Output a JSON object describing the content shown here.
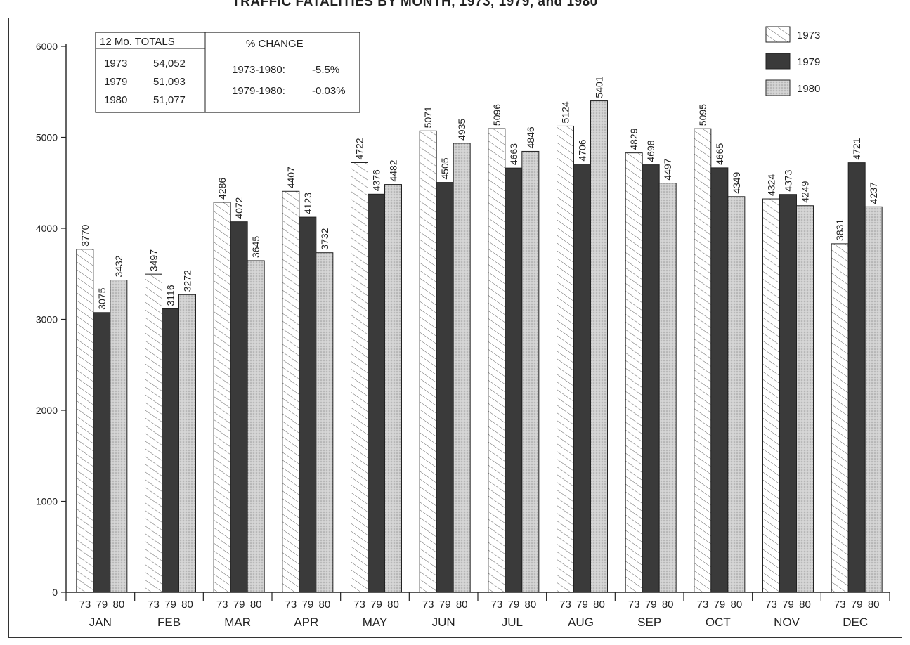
{
  "title": "TRAFFIC FATALITIES BY MONTH, 1973, 1979, and 1980",
  "totals_box": {
    "header": "12 Mo. TOTALS",
    "rows": [
      {
        "year": "1973",
        "value": "54,052"
      },
      {
        "year": "1979",
        "value": "51,093"
      },
      {
        "year": "1980",
        "value": "51,077"
      }
    ]
  },
  "change_box": {
    "header": "% CHANGE",
    "rows": [
      {
        "label": "1973-1980:",
        "value": "-5.5%"
      },
      {
        "label": "1979-1980:",
        "value": "-0.03%"
      }
    ]
  },
  "legend": [
    {
      "label": "1973",
      "pattern": "hatch"
    },
    {
      "label": "1979",
      "pattern": "solid"
    },
    {
      "label": "1980",
      "pattern": "dotted"
    }
  ],
  "colors": {
    "s1973": "#ffffff",
    "s1979": "#3a3a3a",
    "s1980": "#cfcfcf",
    "hatch": "#666666",
    "axis": "#222222"
  },
  "chart_data": {
    "type": "bar",
    "title": "TRAFFIC FATALITIES BY MONTH, 1973, 1979, and 1980",
    "xlabel": "",
    "ylabel": "",
    "ylim": [
      0,
      6000
    ],
    "yticks": [
      0,
      1000,
      2000,
      3000,
      4000,
      5000,
      6000
    ],
    "categories": [
      "JAN",
      "FEB",
      "MAR",
      "APR",
      "MAY",
      "JUN",
      "JUL",
      "AUG",
      "SEP",
      "OCT",
      "NOV",
      "DEC"
    ],
    "bar_labels": [
      "73",
      "79",
      "80"
    ],
    "series": [
      {
        "name": "1973",
        "values": [
          3770,
          3497,
          4286,
          4407,
          4722,
          5071,
          5096,
          5124,
          4829,
          5095,
          4324,
          3831
        ]
      },
      {
        "name": "1979",
        "values": [
          3075,
          3116,
          4072,
          4123,
          4376,
          4505,
          4663,
          4706,
          4698,
          4665,
          4373,
          4721
        ]
      },
      {
        "name": "1980",
        "values": [
          3432,
          3272,
          3645,
          3732,
          4482,
          4935,
          4846,
          5401,
          4497,
          4349,
          4249,
          4237
        ]
      }
    ],
    "grid": false,
    "legend_position": "top-right"
  }
}
